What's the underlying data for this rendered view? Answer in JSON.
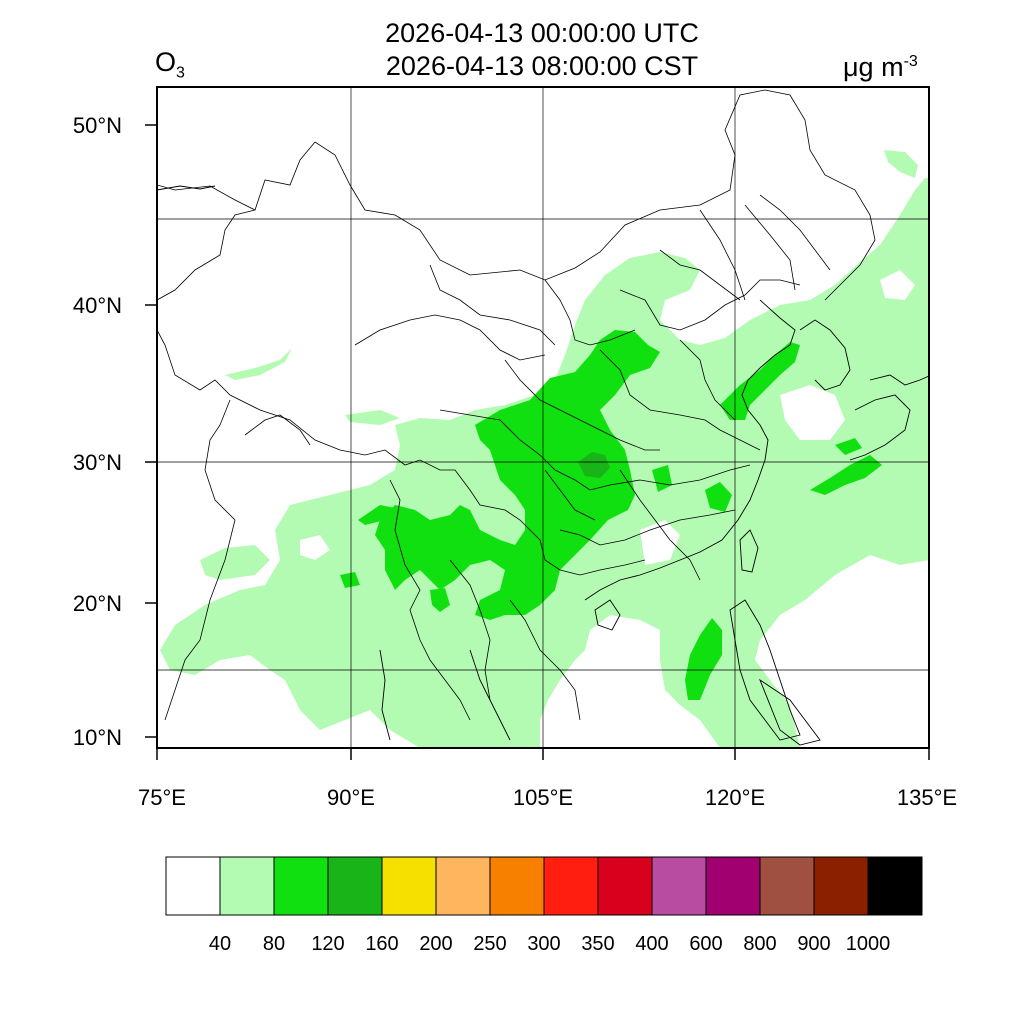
{
  "header": {
    "utc_time": "2026-04-13 00:00:00 UTC",
    "local_time": "2026-04-13 08:00:00 CST",
    "species": "O",
    "species_subscript": "3",
    "unit_prefix": "μg m",
    "unit_exponent": "-3"
  },
  "map": {
    "lon_labels": [
      "75°E",
      "90°E",
      "105°E",
      "120°E",
      "135°E"
    ],
    "lat_labels": [
      "50°N",
      "40°N",
      "30°N",
      "20°N",
      "10°N"
    ],
    "fill_colors": {
      "class_40_80": "#b3fbb3",
      "class_80_120": "#10e010",
      "class_120_160": "#18b418"
    }
  },
  "colorbar": {
    "colors": [
      "#ffffff",
      "#b3fbb3",
      "#10e010",
      "#18b418",
      "#f5e000",
      "#ffb45e",
      "#f88000",
      "#ff1e10",
      "#d8001c",
      "#b84ca0",
      "#a00070",
      "#a05040",
      "#8a2000",
      "#000000"
    ],
    "labels": [
      "40",
      "80",
      "120",
      "160",
      "200",
      "250",
      "300",
      "350",
      "400",
      "600",
      "800",
      "900",
      "1000"
    ]
  }
}
